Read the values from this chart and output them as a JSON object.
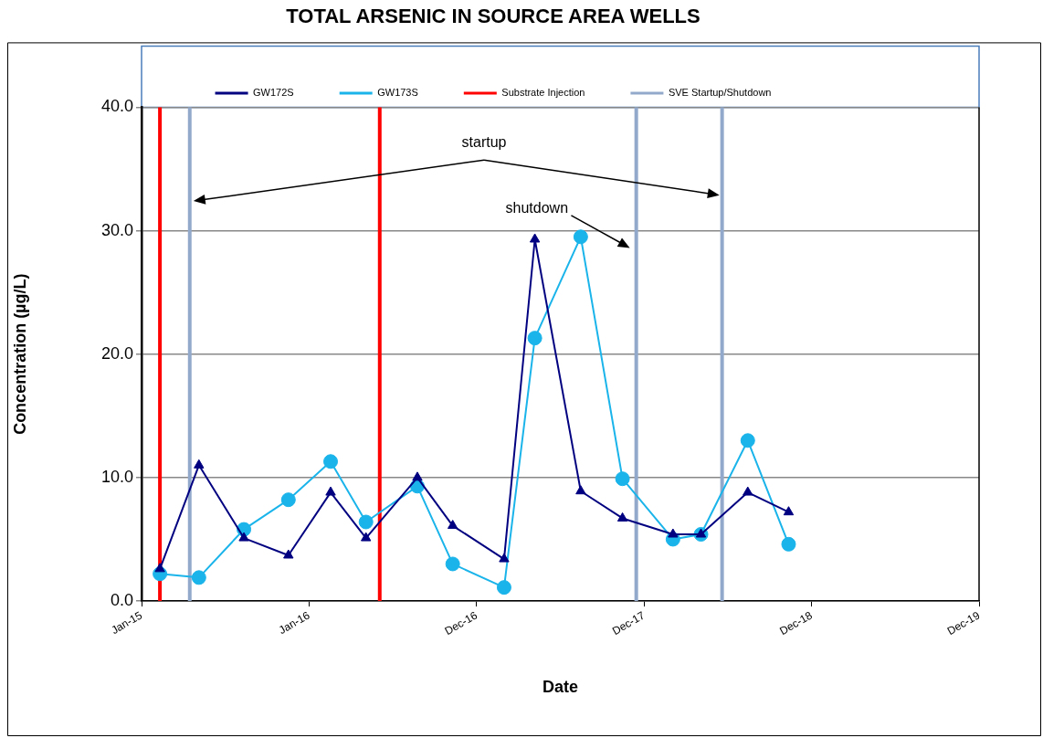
{
  "chart_data": {
    "type": "line",
    "title": "TOTAL ARSENIC IN SOURCE AREA WELLS",
    "xlabel": "Date",
    "ylabel": "Concentration (µg/L)",
    "xlim": [
      "2015-01-01",
      "2019-12-31"
    ],
    "xticks": [
      {
        "value": "2015-01-01",
        "label": "Jan-15"
      },
      {
        "value": "2016-01-01",
        "label": "Jan-16"
      },
      {
        "value": "2016-12-31",
        "label": "Dec-16"
      },
      {
        "value": "2017-12-31",
        "label": "Dec-17"
      },
      {
        "value": "2018-12-31",
        "label": "Dec-18"
      },
      {
        "value": "2019-12-31",
        "label": "Dec-19"
      }
    ],
    "ylim": [
      0,
      40
    ],
    "yticks": [
      {
        "value": 0,
        "label": "0.0"
      },
      {
        "value": 10,
        "label": "10.0"
      },
      {
        "value": 20,
        "label": "20.0"
      },
      {
        "value": 30,
        "label": "30.0"
      },
      {
        "value": 40,
        "label": "40.0"
      }
    ],
    "grid": "y",
    "legend": "top",
    "series": [
      {
        "name": "GW172S",
        "color": "#000080",
        "marker": "triangle",
        "x": [
          "2015-02-10",
          "2015-05-06",
          "2015-08-12",
          "2015-11-17",
          "2016-02-17",
          "2016-05-04",
          "2016-08-24",
          "2016-11-09",
          "2017-03-01",
          "2017-05-07",
          "2017-08-15",
          "2017-11-14",
          "2018-03-04",
          "2018-05-04",
          "2018-08-14",
          "2018-11-11"
        ],
        "values": [
          2.6,
          11.0,
          5.1,
          3.7,
          8.8,
          5.1,
          10.0,
          6.1,
          3.4,
          29.3,
          8.9,
          6.7,
          5.4,
          5.4,
          8.8,
          7.2
        ]
      },
      {
        "name": "GW173S",
        "color": "#1ab4ea",
        "marker": "circle",
        "x": [
          "2015-02-10",
          "2015-05-06",
          "2015-08-12",
          "2015-11-17",
          "2016-02-17",
          "2016-05-04",
          "2016-08-24",
          "2016-11-09",
          "2017-03-01",
          "2017-05-07",
          "2017-08-15",
          "2017-11-14",
          "2018-03-04",
          "2018-05-04",
          "2018-08-14",
          "2018-11-11"
        ],
        "values": [
          2.2,
          1.9,
          5.8,
          8.2,
          11.3,
          6.4,
          9.3,
          3.0,
          1.1,
          21.3,
          29.5,
          9.9,
          5.0,
          5.4,
          13.0,
          4.6
        ]
      }
    ],
    "ref_lines": [
      {
        "axis": "x",
        "value": "2015-02-10",
        "label": "Substrate Injection",
        "color": "#ff0000"
      },
      {
        "axis": "x",
        "value": "2015-04-16",
        "label": "SVE Startup/Shutdown",
        "color": "#93a9cc"
      },
      {
        "axis": "x",
        "value": "2016-06-03",
        "color": "#ff0000"
      },
      {
        "axis": "x",
        "value": "2017-12-14",
        "color": "#93a9cc"
      },
      {
        "axis": "x",
        "value": "2018-06-19",
        "color": "#93a9cc"
      }
    ],
    "annotations": [
      "startup",
      "shutdown"
    ]
  }
}
